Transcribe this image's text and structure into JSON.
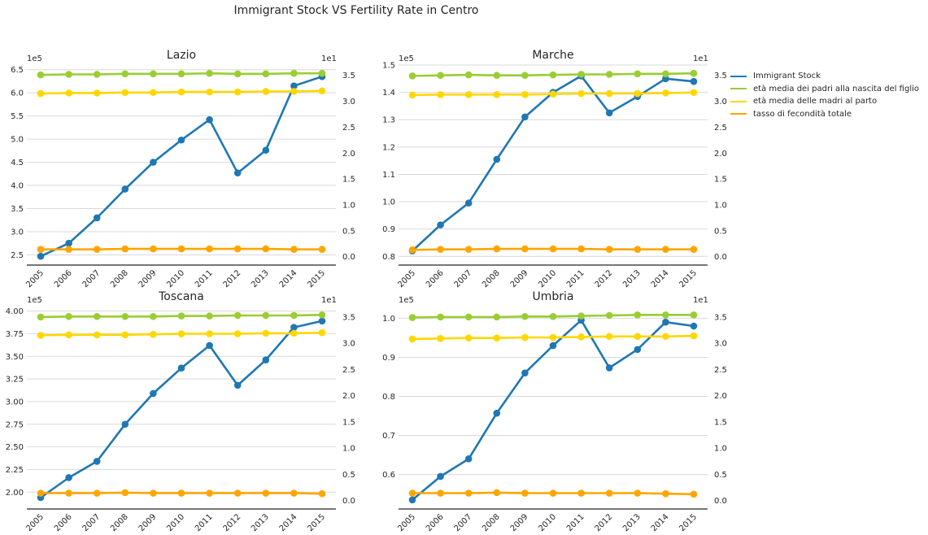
{
  "figure": {
    "title": "Immigrant Stock VS Fertility Rate in Centro"
  },
  "legend": [
    {
      "label": "Immigrant Stock",
      "color": "#1f77b4"
    },
    {
      "label": "età media dei padri alla nascita del figlio",
      "color": "#9acd32"
    },
    {
      "label": "età media delle madri al parto",
      "color": "#ffd700"
    },
    {
      "label": "tasso di fecondità totale",
      "color": "#ffa500"
    }
  ],
  "chart_data": [
    {
      "type": "line",
      "title": "Lazio",
      "x": [
        "2005",
        "2006",
        "2007",
        "2008",
        "2009",
        "2010",
        "2011",
        "2012",
        "2013",
        "2014",
        "2015"
      ],
      "left_axis": {
        "ylim": [
          2.35,
          6.6
        ],
        "ticks": [
          "2.5",
          "3.0",
          "3.5",
          "4.0",
          "4.5",
          "5.0",
          "5.5",
          "6.0",
          "6.5"
        ],
        "tick_values": [
          2.5,
          3.0,
          3.5,
          4.0,
          4.5,
          5.0,
          5.5,
          6.0,
          6.5
        ],
        "exponent_label": "1e5"
      },
      "right_axis": {
        "ylim": [
          -0.1,
          3.7
        ],
        "ticks": [
          "0.0",
          "0.5",
          "1.0",
          "1.5",
          "2.0",
          "2.5",
          "3.0",
          "3.5"
        ],
        "tick_values": [
          0.0,
          0.5,
          1.0,
          1.5,
          2.0,
          2.5,
          3.0,
          3.5
        ],
        "exponent_label": "1e1"
      },
      "series": [
        {
          "name": "Immigrant Stock",
          "axis": "left",
          "color": "#1f77b4",
          "values": [
            2.47,
            2.75,
            3.3,
            3.92,
            4.5,
            4.98,
            5.42,
            4.27,
            4.76,
            6.15,
            6.35
          ]
        },
        {
          "name": "età media dei padri alla nascita del figlio",
          "axis": "right",
          "color": "#9acd32",
          "values": [
            3.51,
            3.52,
            3.52,
            3.53,
            3.53,
            3.53,
            3.54,
            3.53,
            3.53,
            3.54,
            3.54
          ]
        },
        {
          "name": "età media delle madri al parto",
          "axis": "right",
          "color": "#ffd700",
          "values": [
            3.15,
            3.16,
            3.16,
            3.17,
            3.17,
            3.18,
            3.18,
            3.18,
            3.19,
            3.19,
            3.2
          ]
        },
        {
          "name": "tasso di fecondità totale",
          "axis": "right",
          "color": "#ffa500",
          "values": [
            0.14,
            0.14,
            0.14,
            0.15,
            0.15,
            0.15,
            0.15,
            0.15,
            0.15,
            0.14,
            0.14
          ]
        }
      ]
    },
    {
      "type": "line",
      "title": "Marche",
      "x": [
        "2005",
        "2006",
        "2007",
        "2008",
        "2009",
        "2010",
        "2011",
        "2012",
        "2013",
        "2014",
        "2015"
      ],
      "left_axis": {
        "ylim": [
          0.78,
          1.5
        ],
        "ticks": [
          "0.8",
          "0.9",
          "1.0",
          "1.1",
          "1.2",
          "1.3",
          "1.4",
          "1.5"
        ],
        "tick_values": [
          0.8,
          0.9,
          1.0,
          1.1,
          1.2,
          1.3,
          1.4,
          1.5
        ],
        "exponent_label": "1e5"
      },
      "right_axis": {
        "ylim": [
          -0.1,
          3.7
        ],
        "ticks": [
          "0.0",
          "0.5",
          "1.0",
          "1.5",
          "2.0",
          "2.5",
          "3.0",
          "3.5"
        ],
        "tick_values": [
          0.0,
          0.5,
          1.0,
          1.5,
          2.0,
          2.5,
          3.0,
          3.5
        ],
        "exponent_label": "1e1"
      },
      "series": [
        {
          "name": "Immigrant Stock",
          "axis": "left",
          "color": "#1f77b4",
          "values": [
            0.82,
            0.915,
            0.995,
            1.155,
            1.31,
            1.4,
            1.46,
            1.325,
            1.385,
            1.45,
            1.44
          ]
        },
        {
          "name": "età media dei padri alla nascita del figlio",
          "axis": "right",
          "color": "#9acd32",
          "values": [
            3.49,
            3.5,
            3.51,
            3.5,
            3.5,
            3.51,
            3.52,
            3.52,
            3.53,
            3.53,
            3.54
          ]
        },
        {
          "name": "età media delle madri al parto",
          "axis": "right",
          "color": "#ffd700",
          "values": [
            3.12,
            3.13,
            3.13,
            3.13,
            3.13,
            3.14,
            3.15,
            3.15,
            3.15,
            3.16,
            3.17
          ]
        },
        {
          "name": "tasso di fecondità totale",
          "axis": "right",
          "color": "#ffa500",
          "values": [
            0.13,
            0.14,
            0.14,
            0.15,
            0.15,
            0.15,
            0.15,
            0.14,
            0.14,
            0.14,
            0.14
          ]
        }
      ]
    },
    {
      "type": "line",
      "title": "Toscana",
      "x": [
        "2005",
        "2006",
        "2007",
        "2008",
        "2009",
        "2010",
        "2011",
        "2012",
        "2013",
        "2014",
        "2015"
      ],
      "left_axis": {
        "ylim": [
          1.85,
          4.05
        ],
        "ticks": [
          "2.00",
          "2.25",
          "2.50",
          "2.75",
          "3.00",
          "3.25",
          "3.50",
          "3.75",
          "4.00"
        ],
        "tick_values": [
          2.0,
          2.25,
          2.5,
          2.75,
          3.0,
          3.25,
          3.5,
          3.75,
          4.0
        ],
        "exponent_label": "1e5"
      },
      "right_axis": {
        "ylim": [
          -0.1,
          3.7
        ],
        "ticks": [
          "0.0",
          "0.5",
          "1.0",
          "1.5",
          "2.0",
          "2.5",
          "3.0",
          "3.5"
        ],
        "tick_values": [
          0.0,
          0.5,
          1.0,
          1.5,
          2.0,
          2.5,
          3.0,
          3.5
        ],
        "exponent_label": "1e1"
      },
      "series": [
        {
          "name": "Immigrant Stock",
          "axis": "left",
          "color": "#1f77b4",
          "values": [
            1.94,
            2.16,
            2.34,
            2.75,
            3.09,
            3.37,
            3.62,
            3.18,
            3.46,
            3.82,
            3.89
          ]
        },
        {
          "name": "età media dei padri alla nascita del figlio",
          "axis": "right",
          "color": "#9acd32",
          "values": [
            3.5,
            3.51,
            3.51,
            3.51,
            3.51,
            3.52,
            3.52,
            3.53,
            3.53,
            3.53,
            3.54
          ]
        },
        {
          "name": "età media delle madri al parto",
          "axis": "right",
          "color": "#ffd700",
          "values": [
            3.15,
            3.16,
            3.16,
            3.16,
            3.17,
            3.18,
            3.18,
            3.18,
            3.19,
            3.19,
            3.2
          ]
        },
        {
          "name": "tasso di fecondità totale",
          "axis": "right",
          "color": "#ffa500",
          "values": [
            0.14,
            0.14,
            0.14,
            0.15,
            0.14,
            0.14,
            0.14,
            0.14,
            0.14,
            0.14,
            0.13
          ]
        }
      ]
    },
    {
      "type": "line",
      "title": "Umbria",
      "x": [
        "2005",
        "2006",
        "2007",
        "2008",
        "2009",
        "2010",
        "2011",
        "2012",
        "2013",
        "2014",
        "2015"
      ],
      "left_axis": {
        "ylim": [
          0.52,
          1.03
        ],
        "ticks": [
          "0.6",
          "0.7",
          "0.8",
          "0.9",
          "1.0"
        ],
        "tick_values": [
          0.6,
          0.7,
          0.8,
          0.9,
          1.0
        ],
        "exponent_label": "1e5"
      },
      "right_axis": {
        "ylim": [
          -0.1,
          3.7
        ],
        "ticks": [
          "0.0",
          "0.5",
          "1.0",
          "1.5",
          "2.0",
          "2.5",
          "3.0",
          "3.5"
        ],
        "tick_values": [
          0.0,
          0.5,
          1.0,
          1.5,
          2.0,
          2.5,
          3.0,
          3.5
        ],
        "exponent_label": "1e1"
      },
      "series": [
        {
          "name": "Immigrant Stock",
          "axis": "left",
          "color": "#1f77b4",
          "values": [
            0.535,
            0.595,
            0.64,
            0.757,
            0.86,
            0.93,
            0.995,
            0.873,
            0.92,
            0.99,
            0.98
          ]
        },
        {
          "name": "età media dei padri alla nascita del figlio",
          "axis": "right",
          "color": "#9acd32",
          "values": [
            3.49,
            3.5,
            3.5,
            3.5,
            3.51,
            3.51,
            3.52,
            3.53,
            3.54,
            3.54,
            3.54
          ]
        },
        {
          "name": "età media delle madri al parto",
          "axis": "right",
          "color": "#ffd700",
          "values": [
            3.08,
            3.09,
            3.1,
            3.1,
            3.11,
            3.11,
            3.12,
            3.13,
            3.13,
            3.13,
            3.14
          ]
        },
        {
          "name": "tasso di fecondità totale",
          "axis": "right",
          "color": "#ffa500",
          "values": [
            0.14,
            0.14,
            0.14,
            0.15,
            0.14,
            0.14,
            0.14,
            0.14,
            0.14,
            0.13,
            0.12
          ]
        }
      ]
    }
  ]
}
